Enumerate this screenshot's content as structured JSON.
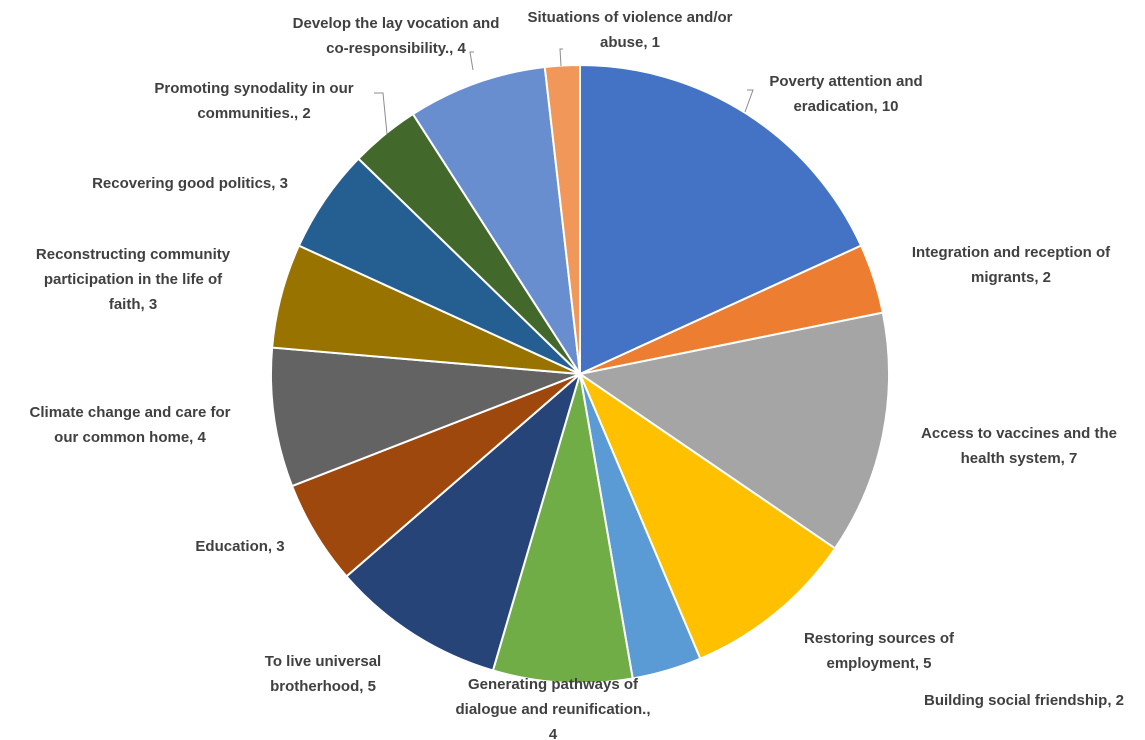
{
  "chart_data": {
    "type": "pie",
    "title": "",
    "slices": [
      {
        "label": "Poverty attention and eradication",
        "value": 10,
        "color": "#4472C4",
        "data_label": [
          "Poverty attention and",
          "eradication, 10"
        ]
      },
      {
        "label": "Integration and reception of migrants",
        "value": 2,
        "color": "#ED7D31",
        "data_label": [
          "Integration and reception of",
          "migrants, 2"
        ]
      },
      {
        "label": "Access to vaccines and the health system",
        "value": 7,
        "color": "#A5A5A5",
        "data_label": [
          "Access to vaccines and the",
          "health system, 7"
        ]
      },
      {
        "label": "Restoring sources of employment",
        "value": 5,
        "color": "#FFC000",
        "data_label": [
          "Restoring sources of",
          "employment, 5"
        ]
      },
      {
        "label": "Building social friendship",
        "value": 2,
        "color": "#5B9BD5",
        "data_label": [
          "Building social friendship, 2"
        ]
      },
      {
        "label": "Generating pathways of dialogue and reunification.",
        "value": 4,
        "color": "#70AD47",
        "data_label": [
          "Generating pathways of",
          "dialogue and reunification.,",
          "4"
        ]
      },
      {
        "label": "To live universal brotherhood",
        "value": 5,
        "color": "#264478",
        "data_label": [
          "To live universal",
          "brotherhood, 5"
        ]
      },
      {
        "label": "Education",
        "value": 3,
        "color": "#9E480E",
        "data_label": [
          "Education, 3"
        ]
      },
      {
        "label": "Climate change and care for our common home",
        "value": 4,
        "color": "#636363",
        "data_label": [
          "Climate change and care for",
          "our common home, 4"
        ]
      },
      {
        "label": "Reconstructing community participation in the life of faith",
        "value": 3,
        "color": "#997300",
        "data_label": [
          "Reconstructing community",
          "participation in the life of",
          "faith, 3"
        ]
      },
      {
        "label": "Recovering good politics",
        "value": 3,
        "color": "#255E91",
        "data_label": [
          "Recovering good politics, 3"
        ]
      },
      {
        "label": "Promoting synodality in our communities.",
        "value": 2,
        "color": "#43682B",
        "data_label": [
          "Promoting synodality in our",
          "communities., 2"
        ]
      },
      {
        "label": "Develop the lay vocation and co-responsibility.",
        "value": 4,
        "color": "#698ED0",
        "data_label": [
          "Develop the lay vocation and",
          "co-responsibility., 4"
        ]
      },
      {
        "label": "Situations of violence and/or abuse",
        "value": 1,
        "color": "#F1975A",
        "data_label": [
          "Situations of violence and/or",
          "abuse, 1"
        ]
      }
    ],
    "start_angle_deg": 0,
    "direction": "clockwise",
    "legend": "none",
    "data_labels": "outside-with-leader-lines"
  }
}
